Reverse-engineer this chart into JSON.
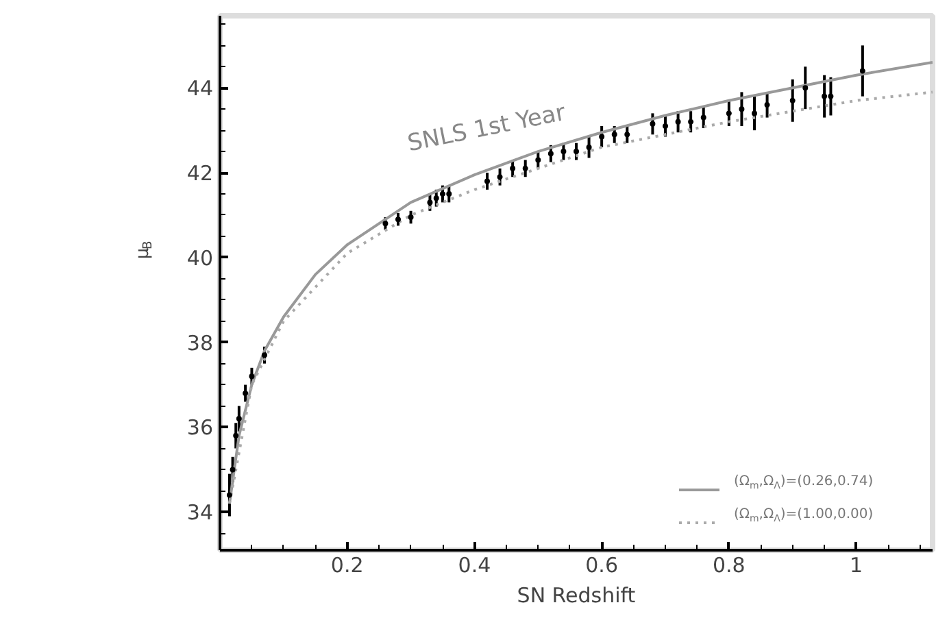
{
  "chart_data": {
    "type": "scatter",
    "xlabel": "SN Redshift",
    "ylabel": "μ$_{B}$",
    "xlim": [
      0,
      1.12
    ],
    "ylim": [
      33.1,
      45.7
    ],
    "xticks": [
      0.2,
      0.4,
      0.6,
      0.8,
      1
    ],
    "yticks": [
      34,
      36,
      38,
      40,
      42,
      44
    ],
    "grid": false,
    "legend": "bottom right",
    "annotations": [
      "SNLS 1st Year"
    ],
    "series": [
      {
        "name": "(Ω$_{m}$,Ω$_{Λ}$)=(0.26,0.74)",
        "type": "line",
        "line_style": "solid",
        "color": "#999999",
        "x": [
          0.015,
          0.03,
          0.05,
          0.07,
          0.1,
          0.15,
          0.2,
          0.3,
          0.4,
          0.5,
          0.6,
          0.7,
          0.8,
          0.9,
          1.0,
          1.12
        ],
        "values": [
          34.2,
          35.8,
          37.0,
          37.8,
          38.6,
          39.6,
          40.3,
          41.3,
          41.95,
          42.5,
          42.95,
          43.35,
          43.7,
          44.0,
          44.3,
          44.6
        ]
      },
      {
        "name": "(Ω$_{m}$,Ω$_{Λ}$)=(1.00,0.00)",
        "type": "line",
        "line_style": "dotted",
        "color": "#aaaaaa",
        "x": [
          0.015,
          0.05,
          0.1,
          0.2,
          0.3,
          0.4,
          0.5,
          0.6,
          0.7,
          0.8,
          0.9,
          1.0,
          1.12
        ],
        "values": [
          34.2,
          37.0,
          38.5,
          40.1,
          41.0,
          41.6,
          42.1,
          42.6,
          42.9,
          43.2,
          43.45,
          43.7,
          43.9
        ]
      },
      {
        "type": "scatter",
        "color": "#000000",
        "marker": "circle",
        "x": [
          0.015,
          0.02,
          0.025,
          0.03,
          0.04,
          0.05,
          0.07,
          0.26,
          0.28,
          0.3,
          0.33,
          0.34,
          0.35,
          0.36,
          0.42,
          0.44,
          0.46,
          0.48,
          0.5,
          0.52,
          0.54,
          0.56,
          0.58,
          0.6,
          0.62,
          0.64,
          0.68,
          0.7,
          0.72,
          0.74,
          0.76,
          0.8,
          0.82,
          0.84,
          0.86,
          0.9,
          0.92,
          0.95,
          0.96,
          1.01
        ],
        "values": [
          34.4,
          35.0,
          35.8,
          36.2,
          36.8,
          37.2,
          37.7,
          40.8,
          40.9,
          40.95,
          41.3,
          41.4,
          41.5,
          41.5,
          41.8,
          41.9,
          42.1,
          42.1,
          42.3,
          42.45,
          42.5,
          42.5,
          42.6,
          42.85,
          42.9,
          42.9,
          43.15,
          43.1,
          43.2,
          43.2,
          43.3,
          43.4,
          43.5,
          43.4,
          43.6,
          43.7,
          44.0,
          43.8,
          43.8,
          44.4
        ],
        "errors": [
          0.5,
          0.3,
          0.3,
          0.3,
          0.2,
          0.2,
          0.2,
          0.15,
          0.15,
          0.15,
          0.2,
          0.2,
          0.2,
          0.2,
          0.2,
          0.2,
          0.2,
          0.2,
          0.2,
          0.2,
          0.2,
          0.2,
          0.25,
          0.25,
          0.2,
          0.2,
          0.25,
          0.25,
          0.25,
          0.25,
          0.25,
          0.3,
          0.4,
          0.4,
          0.3,
          0.5,
          0.5,
          0.5,
          0.45,
          0.6
        ]
      }
    ]
  }
}
